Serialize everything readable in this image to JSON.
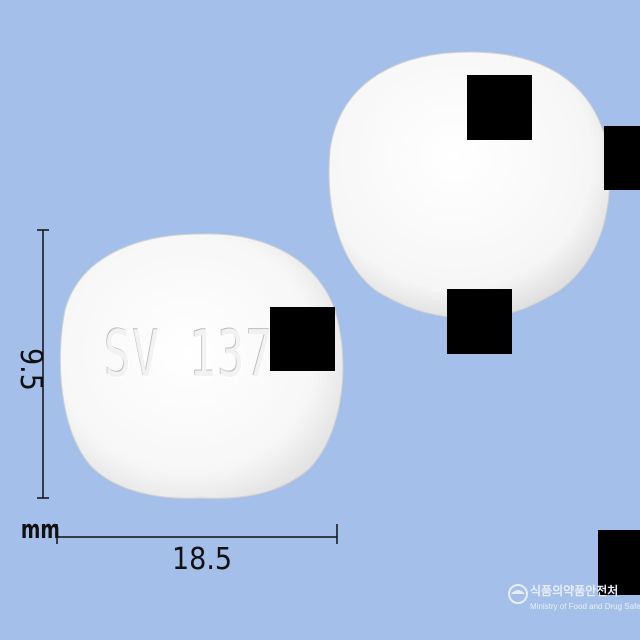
{
  "image": {
    "background_color": "#a4c0ea",
    "pill_color": "#ffffff",
    "imprint": "SV 137"
  },
  "dimensions": {
    "width": "18.5",
    "height": "9.5",
    "unit": "mm"
  },
  "watermark": {
    "org_korean": "식품의약품안전처",
    "org_english": "Ministry of Food and Drug Safety"
  }
}
